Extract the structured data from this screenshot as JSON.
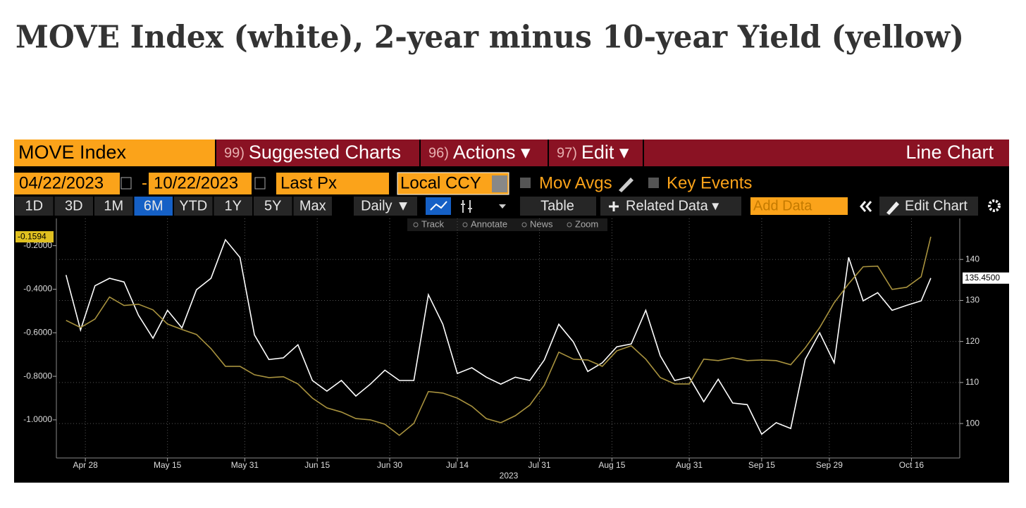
{
  "toolbar": {
    "security": "MOVE Index",
    "menu": [
      {
        "code": "99)",
        "label": "Suggested Charts"
      },
      {
        "code": "96)",
        "label": "Actions ▾"
      },
      {
        "code": "97)",
        "label": "Edit ▾"
      }
    ],
    "chart_type": "Line Chart"
  },
  "range": {
    "start": "04/22/2023",
    "separator": "-",
    "end": "10/22/2023",
    "field": "Last Px",
    "currency": "Local CCY",
    "mov_avgs": "Mov Avgs",
    "key_events": "Key Events"
  },
  "controls": {
    "periods": [
      "1D",
      "3D",
      "1M",
      "6M",
      "YTD",
      "1Y",
      "5Y",
      "Max"
    ],
    "selected_period": "6M",
    "frequency": "Daily ▼",
    "table": "Table",
    "related": "Related Data ▾",
    "add_data": "Add Data",
    "edit_chart": "Edit Chart",
    "tools": [
      "Track",
      "Annotate",
      "News",
      "Zoom"
    ]
  },
  "chart_data": {
    "type": "line",
    "title": "MOVE Index (white), 2-year minus 10-year Yield (yellow)",
    "xlabel": "2023",
    "x": [
      "2023-04-24",
      "2023-04-27",
      "2023-04-30",
      "2023-05-03",
      "2023-05-06",
      "2023-05-09",
      "2023-05-12",
      "2023-05-15",
      "2023-05-18",
      "2023-05-21",
      "2023-05-24",
      "2023-05-27",
      "2023-05-30",
      "2023-06-02",
      "2023-06-05",
      "2023-06-08",
      "2023-06-11",
      "2023-06-14",
      "2023-06-17",
      "2023-06-20",
      "2023-06-23",
      "2023-06-26",
      "2023-06-29",
      "2023-07-02",
      "2023-07-05",
      "2023-07-08",
      "2023-07-11",
      "2023-07-14",
      "2023-07-17",
      "2023-07-20",
      "2023-07-23",
      "2023-07-26",
      "2023-07-29",
      "2023-08-01",
      "2023-08-04",
      "2023-08-07",
      "2023-08-10",
      "2023-08-13",
      "2023-08-16",
      "2023-08-19",
      "2023-08-22",
      "2023-08-25",
      "2023-08-28",
      "2023-08-31",
      "2023-09-03",
      "2023-09-06",
      "2023-09-09",
      "2023-09-12",
      "2023-09-15",
      "2023-09-18",
      "2023-09-21",
      "2023-09-24",
      "2023-09-27",
      "2023-09-30",
      "2023-10-03",
      "2023-10-06",
      "2023-10-09",
      "2023-10-12",
      "2023-10-15",
      "2023-10-18",
      "2023-10-20"
    ],
    "xlim": [
      "2023-04-22",
      "2023-10-26"
    ],
    "xticks": [
      {
        "value": "2023-04-28",
        "label": "Apr 28"
      },
      {
        "value": "2023-05-15",
        "label": "May 15"
      },
      {
        "value": "2023-05-31",
        "label": "May 31"
      },
      {
        "value": "2023-06-15",
        "label": "Jun 15"
      },
      {
        "value": "2023-06-30",
        "label": "Jun 30"
      },
      {
        "value": "2023-07-14",
        "label": "Jul 14"
      },
      {
        "value": "2023-07-31",
        "label": "Jul 31"
      },
      {
        "value": "2023-08-15",
        "label": "Aug 15"
      },
      {
        "value": "2023-08-31",
        "label": "Aug 31"
      },
      {
        "value": "2023-09-15",
        "label": "Sep 15"
      },
      {
        "value": "2023-09-29",
        "label": "Sep 29"
      },
      {
        "value": "2023-10-16",
        "label": "Oct 16"
      }
    ],
    "ylim": [
      -1.175,
      -0.075
    ],
    "yticks": [
      {
        "value": -0.2,
        "label": "-0.2000"
      },
      {
        "value": -0.4,
        "label": "-0.4000"
      },
      {
        "value": -0.6,
        "label": "-0.6000"
      },
      {
        "value": -0.8,
        "label": "-0.8000"
      },
      {
        "value": -1,
        "label": "-1.0000"
      }
    ],
    "y2lim": [
      91.6,
      150
    ],
    "y2ticks": [
      100,
      110,
      120,
      130,
      140
    ],
    "grid": true,
    "series": [
      {
        "color": "#ffffff",
        "axis": "y2",
        "values": [
          136.2,
          122.8,
          133.6,
          135.4,
          134.5,
          126.4,
          120.8,
          127.6,
          123.3,
          132.6,
          135.4,
          144.8,
          140.5,
          121.6,
          115.6,
          116,
          119.2,
          110.5,
          107.9,
          110.5,
          106.7,
          109.6,
          113,
          110.5,
          110.5,
          131.4,
          124.2,
          112.2,
          113.6,
          111.3,
          109.6,
          111.3,
          110.5,
          115.5,
          124.2,
          119.9,
          112.7,
          114.8,
          118.7,
          119.4,
          127.6,
          116.5,
          110.5,
          111.3,
          105.3,
          110.8,
          105,
          104.6,
          97.4,
          100.2,
          98.8,
          115.6,
          122.1,
          114.8,
          140.5,
          129.9,
          131.9,
          127.6,
          128.8,
          129.9,
          135.45
        ],
        "value_labels": [
          null,
          null,
          null,
          null,
          null,
          null,
          null,
          null,
          null,
          null,
          null,
          null,
          null,
          null,
          null,
          null,
          null,
          null,
          null,
          null,
          null,
          null,
          null,
          null,
          null,
          null,
          null,
          null,
          null,
          null,
          null,
          null,
          null,
          null,
          null,
          null,
          null,
          null,
          null,
          null,
          null,
          null,
          null,
          null,
          null,
          null,
          null,
          null,
          null,
          null,
          null,
          null,
          null,
          null,
          null,
          null,
          null,
          null,
          null,
          null,
          "135.4500"
        ]
      },
      {
        "color": "#a8923e",
        "axis": "y",
        "values": [
          -0.543,
          -0.576,
          -0.537,
          -0.436,
          -0.475,
          -0.469,
          -0.495,
          -0.56,
          -0.585,
          -0.608,
          -0.673,
          -0.754,
          -0.754,
          -0.793,
          -0.806,
          -0.802,
          -0.835,
          -0.9,
          -0.945,
          -0.964,
          -0.994,
          -1,
          -1.02,
          -1.071,
          -1.016,
          -0.87,
          -0.877,
          -0.9,
          -0.938,
          -0.994,
          -1.013,
          -0.981,
          -0.932,
          -0.841,
          -0.689,
          -0.721,
          -0.725,
          -0.754,
          -0.683,
          -0.66,
          -0.721,
          -0.806,
          -0.835,
          -0.835,
          -0.721,
          -0.728,
          -0.715,
          -0.728,
          -0.725,
          -0.728,
          -0.747,
          -0.67,
          -0.576,
          -0.462,
          -0.375,
          -0.297,
          -0.294,
          -0.401,
          -0.391,
          -0.343,
          -0.1594
        ]
      }
    ]
  }
}
